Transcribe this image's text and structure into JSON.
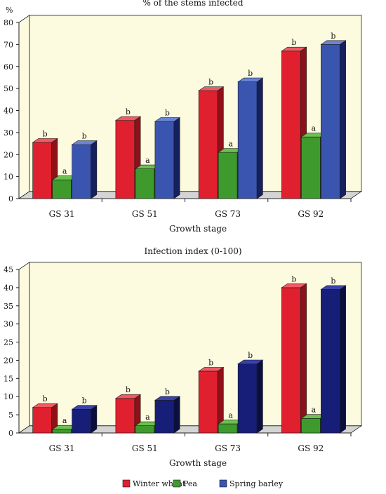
{
  "chart_data": [
    {
      "type": "bar",
      "title": "% of the stems infected",
      "ylabel": "%",
      "xlabel": "Growth stage",
      "categories": [
        "GS 31",
        "GS 51",
        "GS 73",
        "GS 92"
      ],
      "ylim": [
        0,
        80
      ],
      "yticks": [
        0,
        10,
        20,
        30,
        40,
        50,
        60,
        70,
        80
      ],
      "grid": false,
      "series": [
        {
          "name": "Winter wheat",
          "values": [
            25.5,
            35.5,
            49,
            67
          ],
          "labels": [
            "b",
            "b",
            "b",
            "b"
          ],
          "color": "#e0202e",
          "side": "#8e1118",
          "top": "#f05a63"
        },
        {
          "name": "Pea",
          "values": [
            8.5,
            13.5,
            21,
            28
          ],
          "labels": [
            "a",
            "a",
            "a",
            "a"
          ],
          "color": "#3f9a2e",
          "side": "#1f5a14",
          "top": "#6cc04f"
        },
        {
          "name": "Spring barley",
          "values": [
            24.5,
            35,
            53,
            70
          ],
          "labels": [
            "b",
            "b",
            "b",
            "b"
          ],
          "color": "#3a55b0",
          "side": "#15205e",
          "top": "#6a84d6"
        }
      ]
    },
    {
      "type": "bar",
      "title": "Infection index (0-100)",
      "ylabel": "",
      "xlabel": "Growth stage",
      "categories": [
        "GS 31",
        "GS 51",
        "GS 73",
        "GS 92"
      ],
      "ylim": [
        0,
        45
      ],
      "yticks": [
        0,
        5,
        10,
        15,
        20,
        25,
        30,
        35,
        40,
        45
      ],
      "grid": false,
      "series": [
        {
          "name": "Winter wheat",
          "values": [
            7,
            9.5,
            17,
            40
          ],
          "labels": [
            "b",
            "b",
            "b",
            "b"
          ],
          "color": "#e0202e",
          "side": "#8e1118",
          "top": "#f05a63"
        },
        {
          "name": "Pea",
          "values": [
            1,
            2,
            2.5,
            4
          ],
          "labels": [
            "a",
            "a",
            "a",
            "a"
          ],
          "color": "#3f9a2e",
          "side": "#1f5a14",
          "top": "#6cc04f"
        },
        {
          "name": "Spring barley",
          "values": [
            6.5,
            9,
            19,
            39.5
          ],
          "labels": [
            "b",
            "b",
            "b",
            "b"
          ],
          "color": "#171e78",
          "side": "#0a0f40",
          "top": "#3a44a8"
        }
      ]
    }
  ],
  "legend": {
    "placement": "bottom",
    "items": [
      {
        "label": "Winter wheat",
        "color": "#e0202e"
      },
      {
        "label": "Pea",
        "color": "#3f9a2e"
      },
      {
        "label": "Spring barley",
        "color": "#3a55b0"
      }
    ]
  },
  "style": {
    "plot_bg": "#fdfbdf",
    "floor": "#d4d4d4",
    "axis": "#222222"
  }
}
